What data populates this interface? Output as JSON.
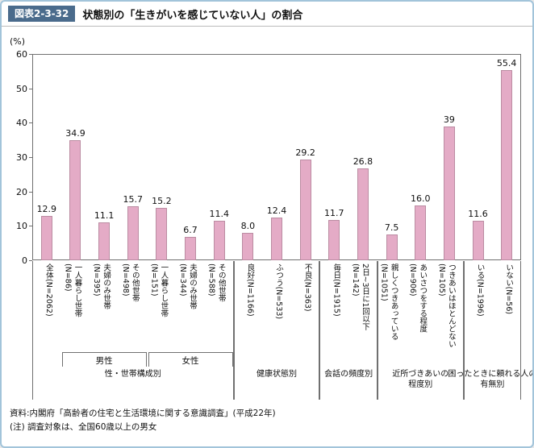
{
  "figure": {
    "tag": "図表2-3-32",
    "title": "状態別の「生きがいを感じていない人」の割合"
  },
  "chart_data": {
    "type": "bar",
    "title": "状態別の「生きがいを感じていない人」の割合",
    "unit": "(%)",
    "ylim": [
      0,
      60
    ],
    "yticks": [
      0,
      10,
      20,
      30,
      40,
      50,
      60
    ],
    "grid": false,
    "bar_color": "#e4abc6",
    "bars": [
      {
        "label": "全体",
        "n": "(N=2062)",
        "value": 12.9,
        "display": "12.9"
      },
      {
        "label": "一人暮らし世帯",
        "n": "(N=86)",
        "value": 34.9,
        "display": "34.9"
      },
      {
        "label": "夫婦のみ世帯",
        "n": "(N=395)",
        "value": 11.1,
        "display": "11.1"
      },
      {
        "label": "その他世帯",
        "n": "(N=498)",
        "value": 15.7,
        "display": "15.7"
      },
      {
        "label": "一人暮らし世帯",
        "n": "(N=151)",
        "value": 15.2,
        "display": "15.2"
      },
      {
        "label": "夫婦のみ世帯",
        "n": "(N=344)",
        "value": 6.7,
        "display": "6.7"
      },
      {
        "label": "その他世帯",
        "n": "(N=588)",
        "value": 11.4,
        "display": "11.4"
      },
      {
        "label": "良好",
        "n": "(N=1166)",
        "value": 8.0,
        "display": "8.0"
      },
      {
        "label": "ふつう",
        "n": "(N=533)",
        "value": 12.4,
        "display": "12.4"
      },
      {
        "label": "不良",
        "n": "(N=363)",
        "value": 29.2,
        "display": "29.2"
      },
      {
        "label": "毎日",
        "n": "(N=1915)",
        "value": 11.7,
        "display": "11.7"
      },
      {
        "label": "2日~3日に1回以下",
        "n": "(N=142)",
        "value": 26.8,
        "display": "26.8"
      },
      {
        "label": "親しくつきあっている",
        "n": "(N=1051)",
        "value": 7.5,
        "display": "7.5"
      },
      {
        "label": "あいさつをする程度",
        "n": "(N=906)",
        "value": 16.0,
        "display": "16.0"
      },
      {
        "label": "つきあいはほとんどない",
        "n": "(N=105)",
        "value": 39,
        "display": "39"
      },
      {
        "label": "いる",
        "n": "(N=1996)",
        "value": 11.6,
        "display": "11.6"
      },
      {
        "label": "いない",
        "n": "(N=56)",
        "value": 55.4,
        "display": "55.4"
      }
    ],
    "subgroups": [
      {
        "label": "男性",
        "start": 1,
        "end": 3
      },
      {
        "label": "女性",
        "start": 4,
        "end": 6
      }
    ],
    "groups": [
      {
        "label": "性・世帯構成別",
        "start": 0,
        "end": 6
      },
      {
        "label": "健康状態別",
        "start": 7,
        "end": 9
      },
      {
        "label": "会話の頻度別",
        "start": 10,
        "end": 11
      },
      {
        "label": "近所づきあいの\n程度別",
        "start": 12,
        "end": 14
      },
      {
        "label": "困ったときに頼れる人の\n有無別",
        "start": 15,
        "end": 16
      }
    ]
  },
  "footer": {
    "source": "資料:内閣府「高齢者の住宅と生活環境に関する意識調査」(平成22年)",
    "note": "(注) 調査対象は、全国60歳以上の男女"
  }
}
